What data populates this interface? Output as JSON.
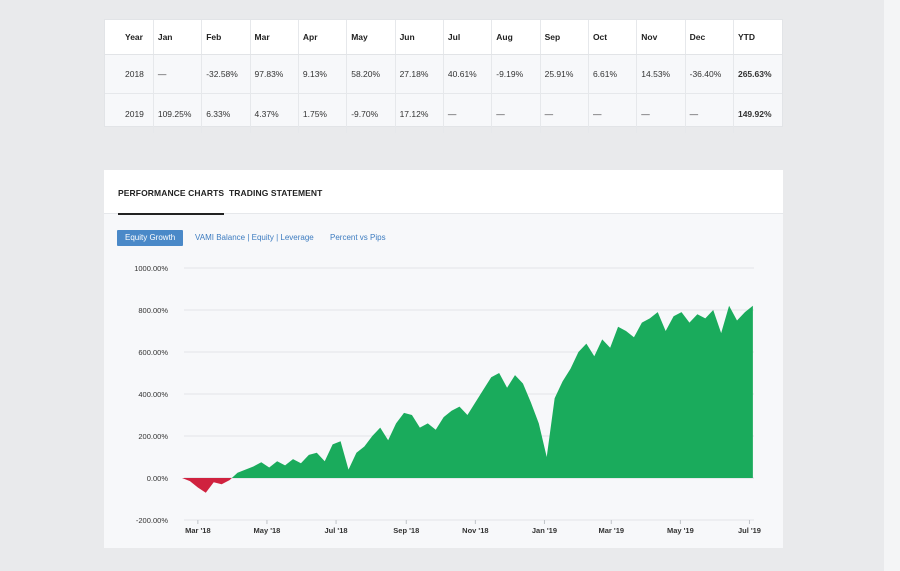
{
  "monthly_table": {
    "headers": [
      "Year",
      "Jan",
      "Feb",
      "Mar",
      "Apr",
      "May",
      "Jun",
      "Jul",
      "Aug",
      "Sep",
      "Oct",
      "Nov",
      "Dec",
      "YTD"
    ],
    "rows": [
      {
        "year": "2018",
        "cells": [
          {
            "text": "—",
            "tone": "dash"
          },
          {
            "text": "-32.58%",
            "tone": "neg"
          },
          {
            "text": "97.83%",
            "tone": "pos"
          },
          {
            "text": "9.13%",
            "tone": "pos"
          },
          {
            "text": "58.20%",
            "tone": "pos"
          },
          {
            "text": "27.18%",
            "tone": "pos"
          },
          {
            "text": "40.61%",
            "tone": "pos"
          },
          {
            "text": "-9.19%",
            "tone": "neg"
          },
          {
            "text": "25.91%",
            "tone": "pos"
          },
          {
            "text": "6.61%",
            "tone": "pos"
          },
          {
            "text": "14.53%",
            "tone": "pos"
          },
          {
            "text": "-36.40%",
            "tone": "neg"
          },
          {
            "text": "265.63%",
            "tone": "pos"
          }
        ]
      },
      {
        "year": "2019",
        "cells": [
          {
            "text": "109.25%",
            "tone": "pos"
          },
          {
            "text": "6.33%",
            "tone": "pos"
          },
          {
            "text": "4.37%",
            "tone": "pos"
          },
          {
            "text": "1.75%",
            "tone": "pos"
          },
          {
            "text": "-9.70%",
            "tone": "neg"
          },
          {
            "text": "17.12%",
            "tone": "pos"
          },
          {
            "text": "—",
            "tone": "dash"
          },
          {
            "text": "—",
            "tone": "dash"
          },
          {
            "text": "—",
            "tone": "dash"
          },
          {
            "text": "—",
            "tone": "dash"
          },
          {
            "text": "—",
            "tone": "dash"
          },
          {
            "text": "—",
            "tone": "dash"
          },
          {
            "text": "149.92%",
            "tone": "pos"
          }
        ]
      }
    ]
  },
  "tabs": {
    "performance": "PERFORMANCE CHARTS",
    "statement": "TRADING STATEMENT"
  },
  "subtabs": {
    "equity": "Equity Growth",
    "vami": "VAMI Balance | Equity | Leverage",
    "pips": "Percent vs Pips"
  },
  "colors": {
    "positive": "#1aab5c",
    "negative": "#d0223f",
    "accent": "#4a89c8"
  },
  "chart_data": {
    "type": "area",
    "title": "",
    "xlabel": "",
    "ylabel": "",
    "ylim": [
      -200,
      1000
    ],
    "y_ticks": [
      1000,
      800,
      600,
      400,
      200,
      0,
      -200
    ],
    "y_tick_labels": [
      "1000.00%",
      "800.00%",
      "600.00%",
      "400.00%",
      "200.00%",
      "0.00%",
      "-200.00%"
    ],
    "x_tick_labels": [
      "Mar '18",
      "May '18",
      "Jul '18",
      "Sep '18",
      "Nov '18",
      "Jan '19",
      "Mar '19",
      "May '19",
      "Jul '19"
    ],
    "x_range": [
      "2018-02-15",
      "2019-07-05"
    ],
    "x_ticks": [
      "2018-03-01",
      "2018-05-01",
      "2018-07-01",
      "2018-09-01",
      "2018-11-01",
      "2019-01-01",
      "2019-03-01",
      "2019-05-01",
      "2019-07-01"
    ],
    "grid": true,
    "series": [
      {
        "x": [
          "2018-02-15",
          "2018-02-22",
          "2018-03-01",
          "2018-03-08",
          "2018-03-15",
          "2018-03-22",
          "2018-03-29",
          "2018-04-05",
          "2018-04-12",
          "2018-04-19",
          "2018-04-26",
          "2018-05-03",
          "2018-05-10",
          "2018-05-17",
          "2018-05-24",
          "2018-05-31",
          "2018-06-07",
          "2018-06-14",
          "2018-06-21",
          "2018-06-28",
          "2018-07-05",
          "2018-07-12",
          "2018-07-19",
          "2018-07-26",
          "2018-08-02",
          "2018-08-09",
          "2018-08-16",
          "2018-08-23",
          "2018-08-30",
          "2018-09-06",
          "2018-09-13",
          "2018-09-20",
          "2018-09-27",
          "2018-10-04",
          "2018-10-11",
          "2018-10-18",
          "2018-10-25",
          "2018-11-01",
          "2018-11-08",
          "2018-11-15",
          "2018-11-22",
          "2018-11-29",
          "2018-12-06",
          "2018-12-13",
          "2018-12-20",
          "2018-12-27",
          "2019-01-03",
          "2019-01-10",
          "2019-01-17",
          "2019-01-24",
          "2019-01-31",
          "2019-02-07",
          "2019-02-14",
          "2019-02-21",
          "2019-02-28",
          "2019-03-07",
          "2019-03-14",
          "2019-03-21",
          "2019-03-28",
          "2019-04-04",
          "2019-04-11",
          "2019-04-18",
          "2019-04-25",
          "2019-05-02",
          "2019-05-09",
          "2019-05-16",
          "2019-05-23",
          "2019-05-30",
          "2019-06-06",
          "2019-06-13",
          "2019-06-20",
          "2019-06-27",
          "2019-07-04"
        ],
        "values": [
          0,
          -15,
          -45,
          -70,
          -20,
          -30,
          -10,
          25,
          40,
          55,
          75,
          50,
          80,
          60,
          90,
          70,
          110,
          120,
          80,
          160,
          175,
          40,
          120,
          150,
          200,
          240,
          180,
          260,
          310,
          300,
          240,
          260,
          230,
          290,
          320,
          340,
          300,
          360,
          420,
          480,
          500,
          430,
          490,
          450,
          360,
          260,
          100,
          380,
          460,
          520,
          600,
          640,
          580,
          660,
          620,
          720,
          700,
          670,
          740,
          760,
          790,
          700,
          770,
          790,
          740,
          780,
          760,
          800,
          690,
          820,
          750,
          790,
          820
        ]
      }
    ]
  }
}
